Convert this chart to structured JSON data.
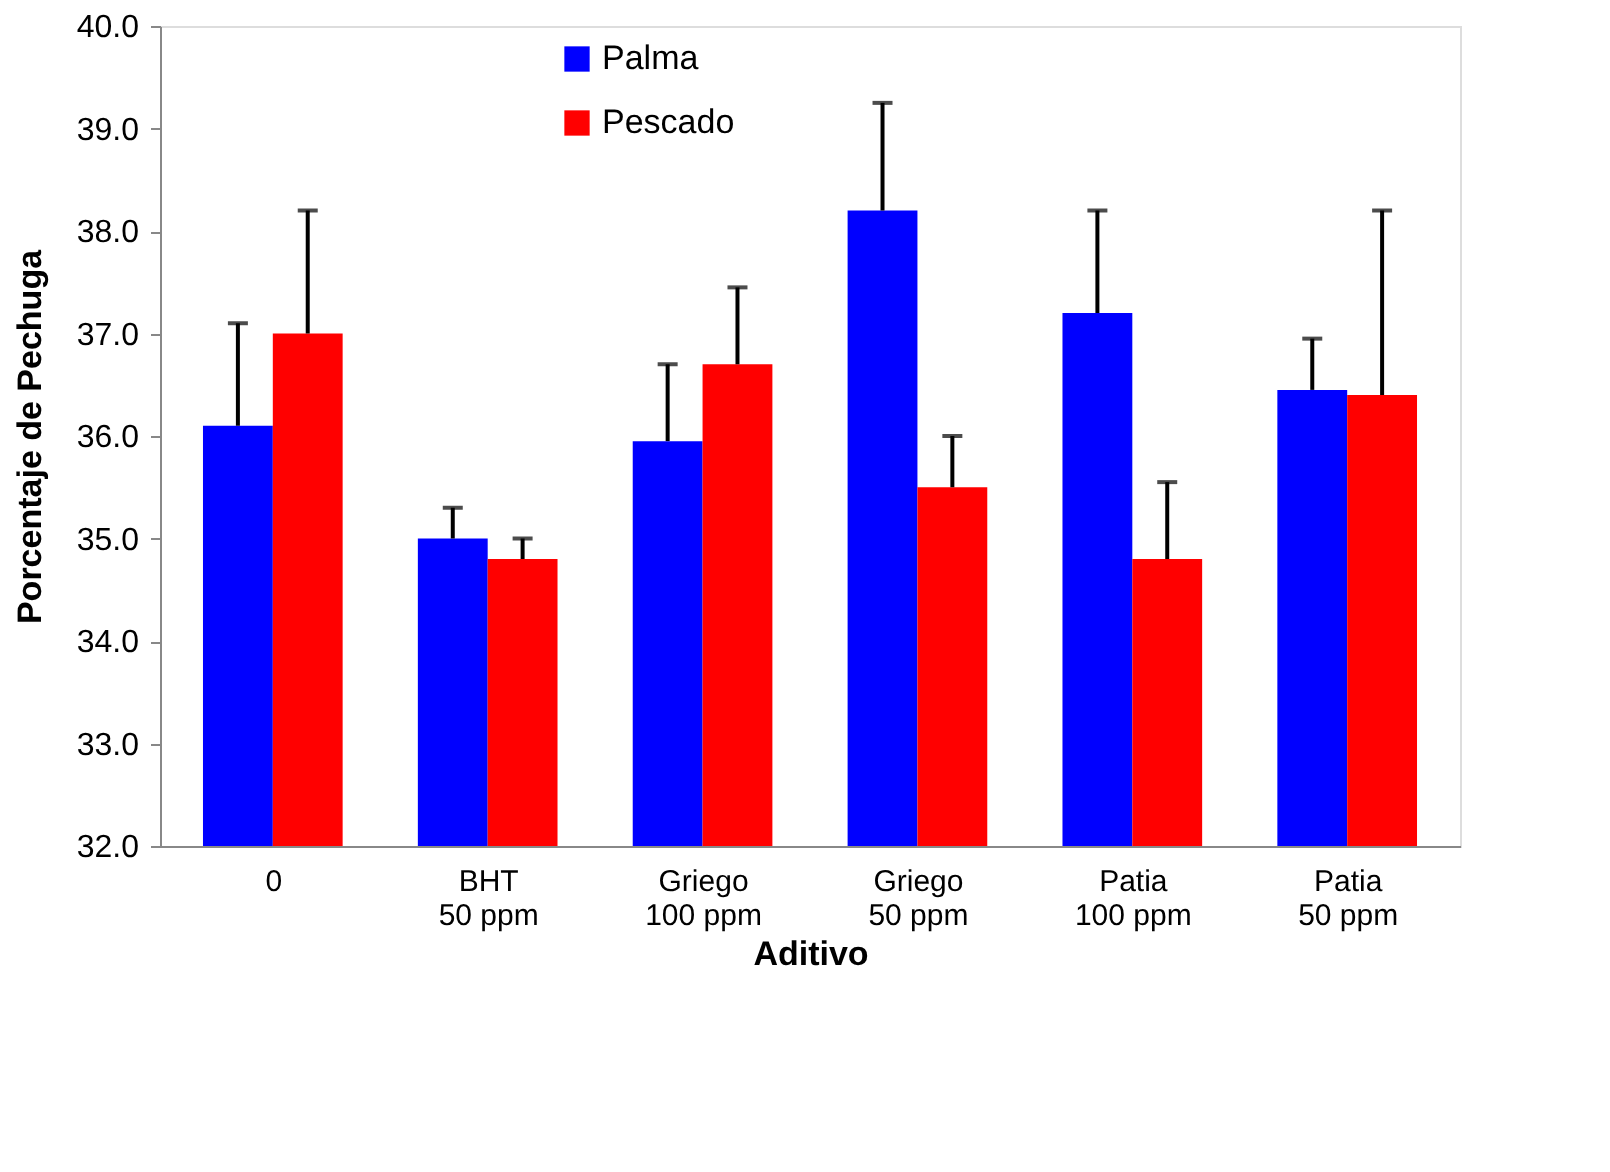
{
  "chart_data": {
    "type": "bar",
    "xlabel": "Aditivo",
    "ylabel": "Porcentaje de Pechuga",
    "categories": [
      "0",
      "BHT\n50 ppm",
      "Griego\n100 ppm",
      "Griego\n50 ppm",
      "Patia\n100 ppm",
      "Patia\n50 ppm"
    ],
    "series": [
      {
        "name": "Palma",
        "color": "#0000ff",
        "values": [
          36.1,
          35.0,
          35.95,
          38.2,
          37.2,
          36.45
        ],
        "errors": [
          [
            36.1,
            37.1
          ],
          [
            35.0,
            35.3
          ],
          [
            35.95,
            36.7
          ],
          [
            38.2,
            39.25
          ],
          [
            37.2,
            38.2
          ],
          [
            36.45,
            36.95
          ]
        ]
      },
      {
        "name": "Pescado",
        "color": "#ff0000",
        "values": [
          37.0,
          34.8,
          36.7,
          35.5,
          34.8,
          36.4
        ],
        "errors": [
          [
            37.0,
            38.2
          ],
          [
            34.8,
            35.0
          ],
          [
            36.7,
            37.45
          ],
          [
            35.5,
            36.0
          ],
          [
            34.8,
            35.55
          ],
          [
            36.4,
            38.2
          ]
        ]
      }
    ],
    "ylim": [
      32,
      40
    ],
    "yticks": [
      {
        "value": 32,
        "label": "32.0"
      },
      {
        "value": 33,
        "label": "33.0"
      },
      {
        "value": 34,
        "label": "34.0"
      },
      {
        "value": 35,
        "label": "35.0"
      },
      {
        "value": 36,
        "label": "36.0"
      },
      {
        "value": 37,
        "label": "37.0"
      },
      {
        "value": 38,
        "label": "38.0"
      },
      {
        "value": 39,
        "label": "39.0"
      },
      {
        "value": 40,
        "label": "40.0"
      }
    ],
    "grid": false,
    "legend": "top left"
  }
}
